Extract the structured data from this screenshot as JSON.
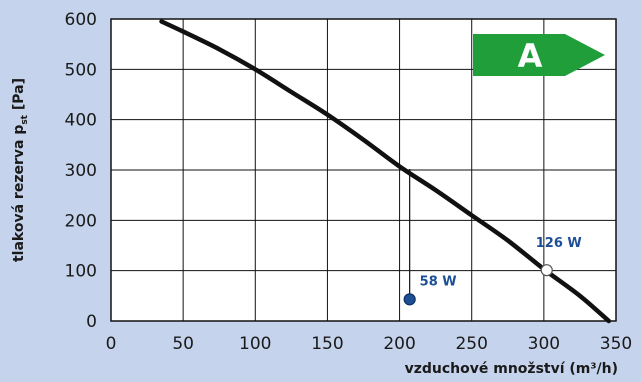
{
  "chart_data": {
    "type": "line",
    "xlabel": "vzduchové množství (m³/h)",
    "ylabel": "tlaková rezerva p",
    "ylabel_subscript": "st",
    "ylabel_unit": " [Pa]",
    "xlim": [
      0,
      350
    ],
    "ylim": [
      0,
      600
    ],
    "x_ticks": [
      0,
      50,
      100,
      150,
      200,
      250,
      300,
      350
    ],
    "y_ticks": [
      0,
      100,
      200,
      300,
      400,
      500,
      600
    ],
    "grid": true,
    "series": [
      {
        "x": [
          35,
          50,
          75,
          100,
          125,
          150,
          175,
          200,
          225,
          250,
          275,
          300,
          325,
          345
        ],
        "y": [
          595,
          575,
          540,
          500,
          455,
          410,
          360,
          307,
          260,
          210,
          160,
          103,
          50,
          0
        ]
      }
    ],
    "markers": [
      {
        "x": 207,
        "y": 43,
        "label": "58 W",
        "color": "#1d4f95",
        "fill": "#1d4f95"
      },
      {
        "x": 302,
        "y": 101,
        "label": "126 W",
        "color": "#1d4f95",
        "fill": "#ffffff"
      }
    ],
    "drop_lines": [
      {
        "x": 207,
        "y_from": 43,
        "y_to": 302
      }
    ],
    "energy_class": {
      "label": "A",
      "color": "#1f9e3a"
    }
  }
}
